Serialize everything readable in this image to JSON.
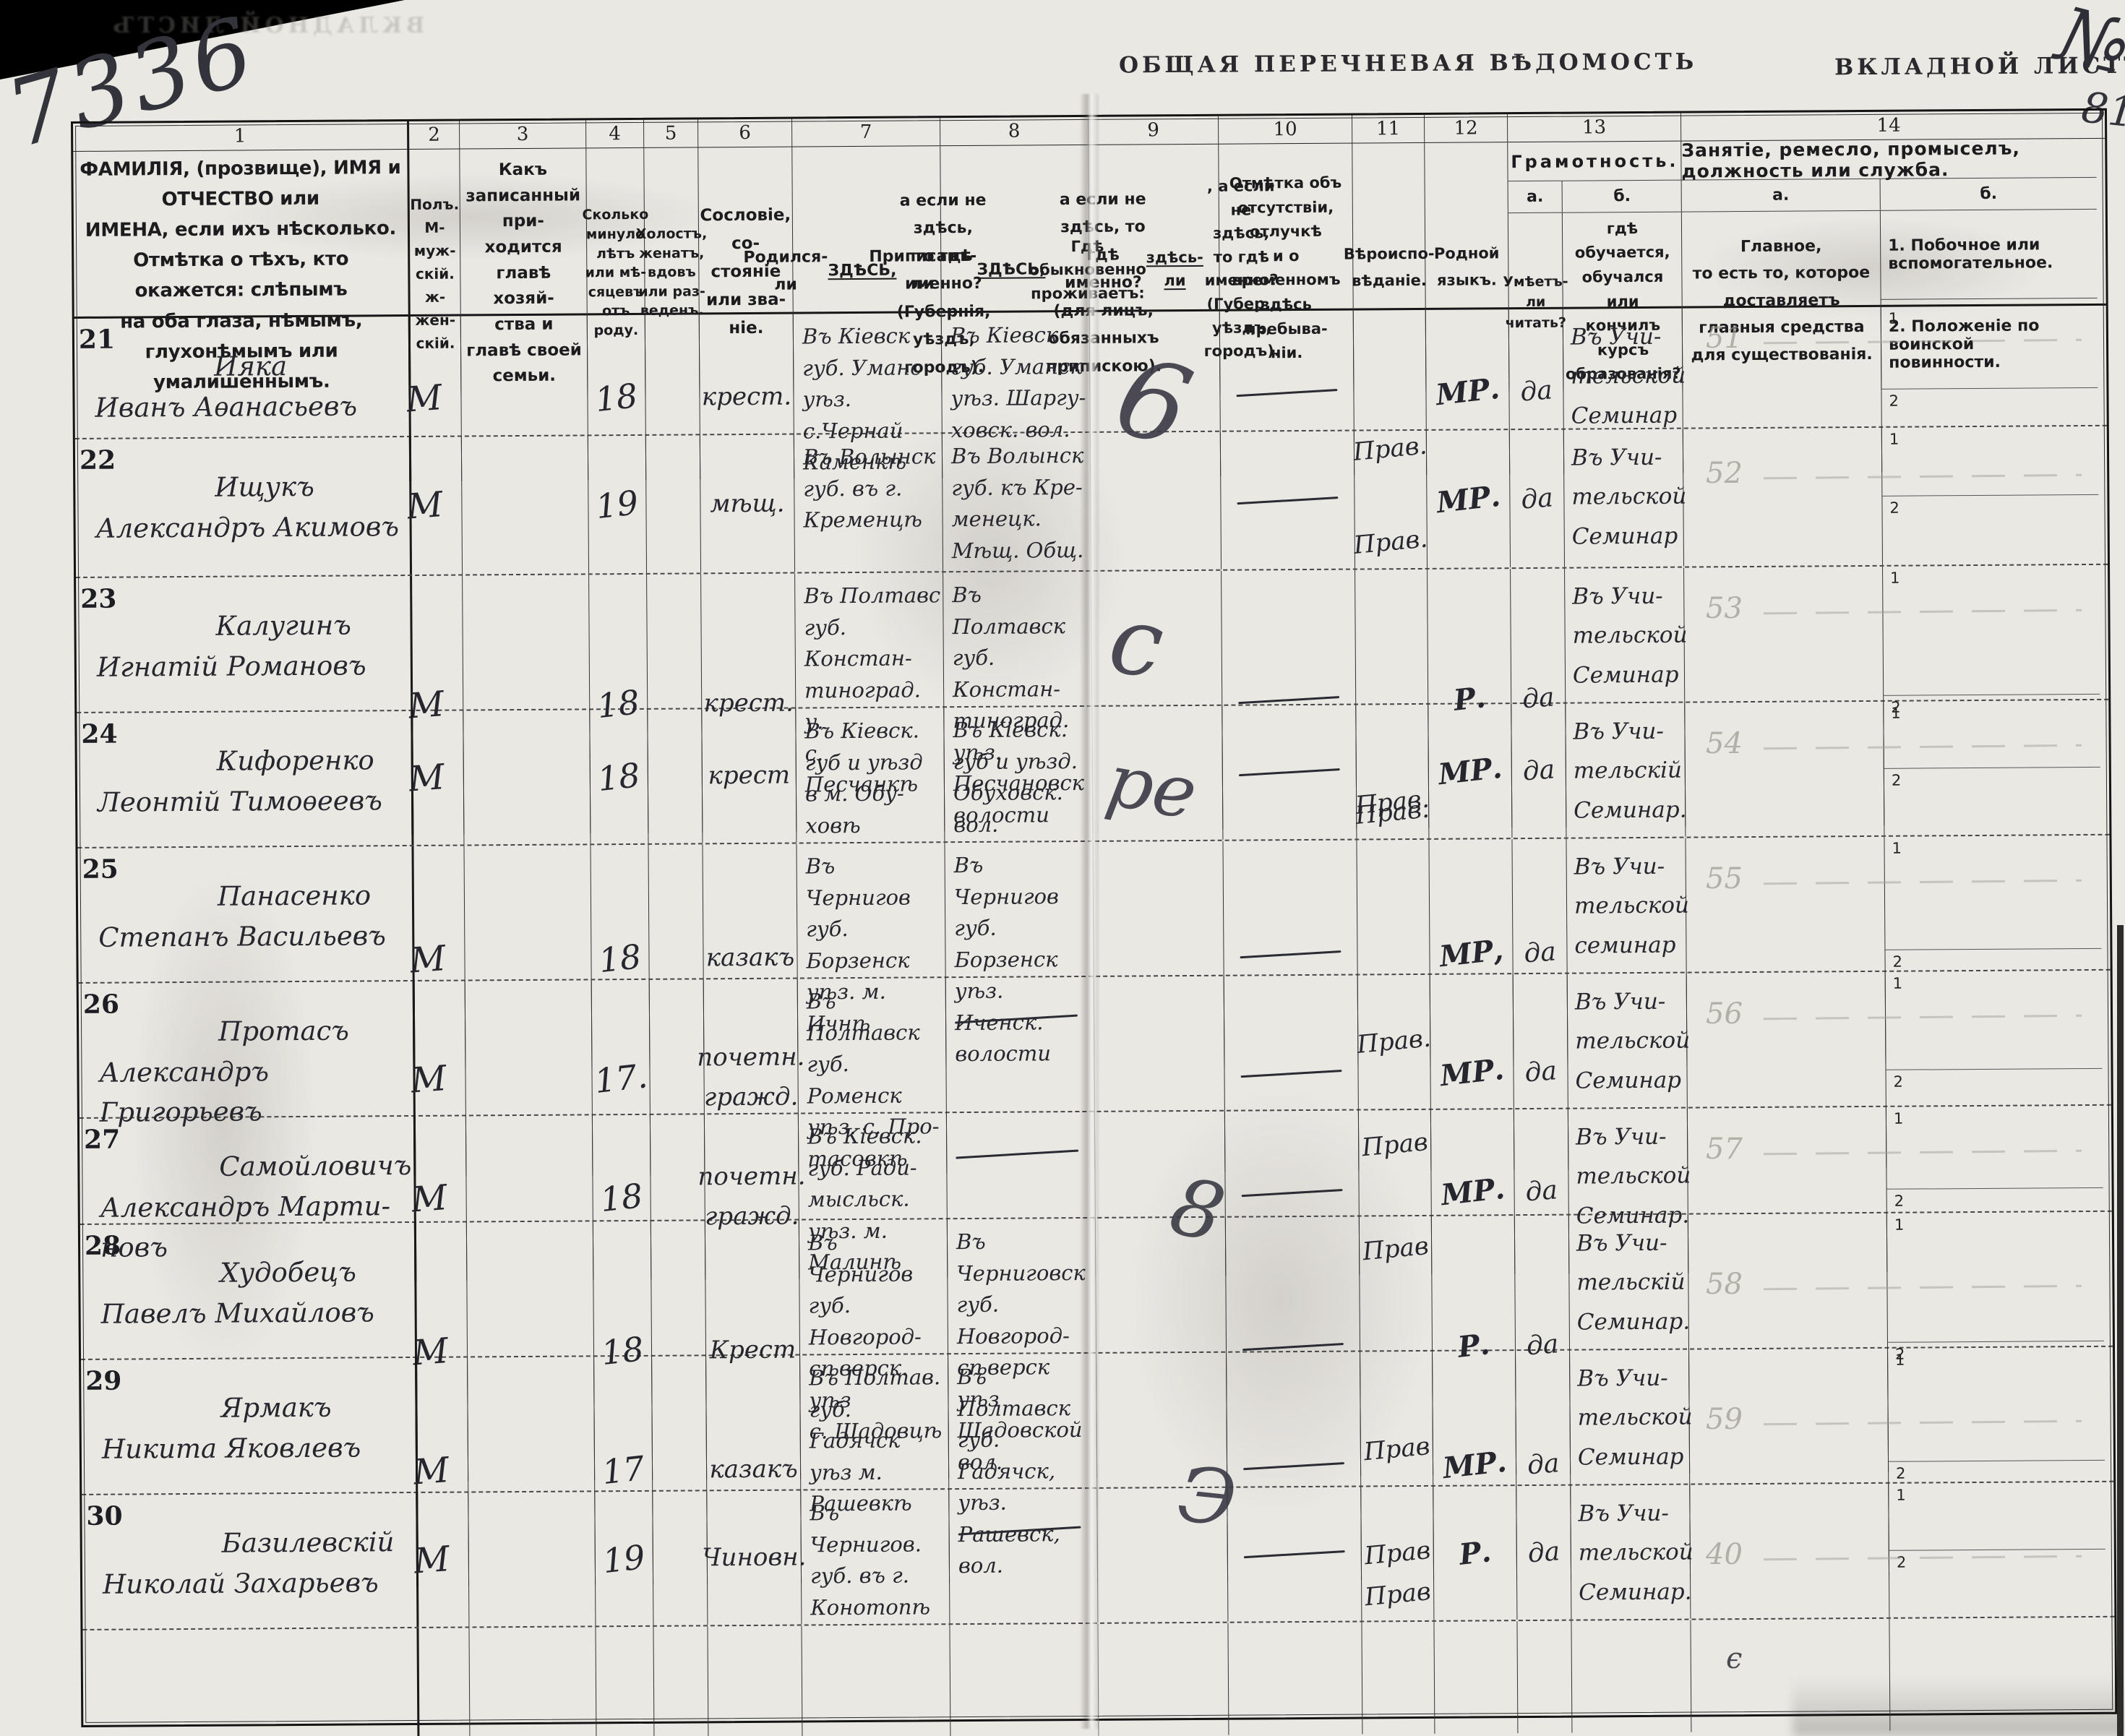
{
  "page": {
    "ledger_number": "7336",
    "title_center": "ОБЩАЯ ПЕРЕЧНЕВАЯ ВѢДОМОСТЬ",
    "title_right": "ВКЛАДНОЙ ЛИСТЪ",
    "corner_flourish": "№",
    "corner_number": "81",
    "bottom_mark": "є"
  },
  "table": {
    "column_numbers": [
      "1",
      "2",
      "3",
      "4",
      "5",
      "6",
      "7",
      "8",
      "9",
      "10",
      "11",
      "12",
      "13",
      "14"
    ],
    "headers": {
      "c1": "ФАМИЛІЯ, (прозвище), ИМЯ и ОТЧЕСТВО или\nИМЕНА, если ихъ нѣсколько.\nОтмѣтка о тѣхъ, кто окажется: слѣпымъ\nна оба глаза, нѣмымъ, глухонѣмымъ или\nумалишеннымъ.",
      "c2": "Полъ.\nМ-муж-\nскій.\nж-жен-\nскій.",
      "c3": "Какъ записанный при-\nходится главѣ хозяй-\nства и главѣ своей\nсемьи.",
      "c4": "Сколько\nминуло\nлѣтъ\nили мѣ-\nсяцевъ\nотъ роду.",
      "c5": "Холостъ,\nженатъ,\nвдовъ\nили раз-\nведенъ.",
      "c6": "Сословіе, со-\nстояніе или зва-\nніе.",
      "c7": "Родился-ли ЗДѢСЬ,\nа если не здѣсь,\nто гдѣ именно?\n(Губернія, уѣздъ, городъ).",
      "c8": "Приписанъ-ли ЗДѢСЬ,\nа если не здѣсь, то гдѣ\nименно?\n(для лицъ, обязанныхъ\nприпискою).",
      "c9": "Гдѣ обыкновенно\nпроживаетъ:\nздѣсь-ли, а если\nне здѣсь, то гдѣ\nименно?\n(Губер., уѣздъ, городъ).",
      "c10": "Отмѣтка объ\nотсутствіи, отлучкѣ\nи о временномъ\nздѣсь пребыва-\nніи.",
      "c11": "Вѣроиспо-\nвѣданіе.",
      "c12": "Родной\nязыкъ.",
      "c13": "Грамотность.",
      "c13a_label": "а.",
      "c13b_label": "б.",
      "c13a": "Умѣетъ-\nли\nчитать?",
      "c13b": "гдѣ обучается,\nобучался или\nкончилъ курсъ\nобразованія?",
      "c14": "Занятіе, ремесло, промыселъ, должность или служба.",
      "c14a_label": "а.",
      "c14b_label": "б.",
      "c14a": "Главное,\nто есть то, которое доставляетъ\nглавныя средства для существованія.",
      "c14b1": "1. Побочное или вспомогательное.",
      "c14b2": "2. Положеніе по воинской повинности.",
      "row_sub_labels": [
        "1",
        "2"
      ]
    },
    "rows": [
      {
        "num": "21",
        "name": "Ияка\nИванъ Аѳанасьевъ",
        "sex": "М",
        "age": "18",
        "estate": "крест.",
        "born": "Въ Кіевск\nгуб. Уманс\nуѣз. с.Чернай\nКаменкѣ",
        "reg": "Въ Кіевск\nгуб. Уманск\nуѣз. Шаргу-\nховск. вол.",
        "absent": "—",
        "faith": "Прав.",
        "lang": "МР.",
        "read": "да",
        "school": "Въ Учи-\nтельской\nСеминар"
      },
      {
        "num": "22",
        "name": "Ищукъ\nАлександръ Акимовъ",
        "sex": "М",
        "age": "19",
        "estate": "мѣщ.",
        "born": "Въ Волынск\nгуб. въ г.\nКременцѣ",
        "reg": "Въ Волынск\nгуб. къ Кре-\nменецк.\nМѣщ. Общ.",
        "absent": "—",
        "faith": "Прав.",
        "lang": "МР.",
        "read": "да",
        "school": "Въ Учи-\nтельской\nСеминар"
      },
      {
        "num": "23",
        "name": "Калугинъ\nИгнатій Романовъ",
        "sex": "М",
        "age": "18",
        "estate": "крест.",
        "born": "Въ Полтавс\nгуб. Констан-\nтиноград. у.\nс. Песчанкѣ",
        "reg": "Въ Полтавск\nгуб. Констан-\nтиноград. уѣз.\nПесчановск\nволости",
        "absent": "—",
        "faith": "Прав.",
        "lang": "Р.",
        "read": "да",
        "school": "Въ Учи-\nтельской\nСеминар"
      },
      {
        "num": "24",
        "name": "Кифоренко\nЛеонтій Тимоѳеевъ",
        "sex": "М",
        "age": "18",
        "estate": "крест",
        "born": "Въ Кіевск.\nгуб и уѣзд\nв м. Обу-\nховѣ",
        "reg": "Въ Кіевск.\nгуб и уѣзд.\nОбуховск.\nвол.",
        "absent": "—",
        "faith": "Прав.",
        "lang": "МР.",
        "read": "да",
        "school": "Въ Учи-\nтельскій\nСеминар."
      },
      {
        "num": "25",
        "name": "Панасенко\nСтепанъ Васильевъ",
        "sex": "М",
        "age": "18",
        "estate": "казакъ",
        "born": "Въ Чернигов\nгуб. Борзенск\nуѣз. м. Ичнѣ",
        "reg": "Въ Чернигов\nгуб. Борзенск\nуѣз. Иченск.\nволости",
        "absent": "—",
        "faith": "Прав.",
        "lang": "МР,",
        "read": "да",
        "school": "Въ Учи-\nтельской\nсеминар"
      },
      {
        "num": "26",
        "name": "Протасъ\nАлександръ Григорьевъ",
        "sex": "М",
        "age": "17.",
        "estate": "почетн.\nгражд.",
        "born": "Въ Полтавск\nгуб. Роменск\nуѣз. с. Про-\nтасовкѣ",
        "reg": "—",
        "absent": "—",
        "faith": "Прав",
        "lang": "МР.",
        "read": "да",
        "school": "Въ Учи-\nтельской\nСеминар"
      },
      {
        "num": "27",
        "name": "Самойловичъ\nАлександръ Марти-\nновъ",
        "sex": "М",
        "age": "18",
        "estate": "почетн.\nгражд.",
        "born": "Въ Кіевск.\nгуб. Ради-\nмысльск.\nуѣз. м.\nМалинѣ",
        "reg": "—",
        "absent": "—",
        "faith": "Прав",
        "lang": "МР.",
        "read": "да",
        "school": "Въ Учи-\nтельской\nСеминар."
      },
      {
        "num": "28",
        "name": "Худобецъ\nПавелъ Михайловъ",
        "sex": "М",
        "age": "18",
        "estate": "Крест",
        "born": "Въ Чернигов\nгуб. Новгород-\nсѣверск. уѣз\nс. Шадовцѣ",
        "reg": "Въ Черниговск\nгуб. Новгород-\nсѣверск уѣз\nШадовской\nвол.",
        "absent": "—",
        "faith": "Прав",
        "lang": "Р.",
        "read": "да",
        "school": "Въ Учи-\nтельскій\nСеминар."
      },
      {
        "num": "29",
        "name": "Ярмакъ\nНикита Яковлевъ",
        "sex": "М",
        "age": "17",
        "estate": "казакъ",
        "born": "Въ Полтав.\nгуб. Гадячск\nуѣз м.\nРашевкѣ",
        "reg": "Въ Полтавск\nгуб. Гадячск,\nуѣз. Рашевск,\nвол.",
        "absent": "—",
        "faith": "Прав",
        "lang": "МР.",
        "read": "да",
        "school": "Въ Учи-\nтельской\nСеминар"
      },
      {
        "num": "30",
        "name": "Базилевскій\nНиколай Захарьевъ",
        "sex": "М",
        "age": "19",
        "estate": "Чиновн.",
        "born": "Въ Чернигов.\nгуб. въ г.\nКонотопѣ",
        "reg": "—",
        "absent": "—",
        "faith": "Прав",
        "lang": "Р.",
        "read": "да",
        "school": "Въ Учи-\nтельской\nСеминар."
      }
    ]
  },
  "margin_marks": [
    "6",
    "с",
    "ре",
    "8",
    "Э"
  ],
  "bleed_numbers": [
    "51",
    "52",
    "53",
    "54",
    "55",
    "56",
    "57",
    "58",
    "59",
    "40"
  ]
}
